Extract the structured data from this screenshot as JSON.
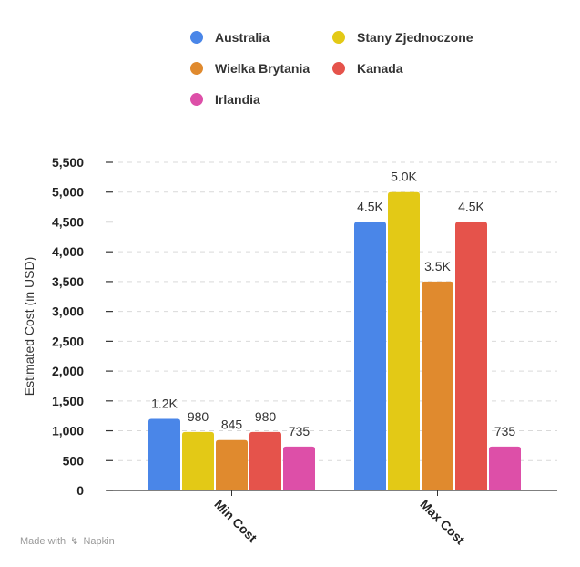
{
  "chart_data": {
    "type": "bar",
    "title": "",
    "xlabel": "",
    "ylabel": "Estimated Cost (in USD)",
    "categories": [
      "Min Cost",
      "Max Cost"
    ],
    "series": [
      {
        "name": "Australia",
        "color": "#4a86e8",
        "values": [
          1200,
          4500
        ],
        "labels": [
          "1.2K",
          "4.5K"
        ]
      },
      {
        "name": "Stany Zjednoczone",
        "color": "#e3c916",
        "values": [
          980,
          5000
        ],
        "labels": [
          "980",
          "5.0K"
        ]
      },
      {
        "name": "Wielka Brytania",
        "color": "#e08a2e",
        "values": [
          845,
          3500
        ],
        "labels": [
          "845",
          "3.5K"
        ]
      },
      {
        "name": "Kanada",
        "color": "#e5534b",
        "values": [
          980,
          4500
        ],
        "labels": [
          "980",
          "4.5K"
        ]
      },
      {
        "name": "Irlandia",
        "color": "#dd4fa8",
        "values": [
          735,
          735
        ],
        "labels": [
          "735",
          "735"
        ]
      }
    ],
    "yticks": [
      0,
      500,
      1000,
      1500,
      2000,
      2500,
      3000,
      3500,
      4000,
      4500,
      5000,
      5500
    ],
    "ytick_labels": [
      "0",
      "500",
      "1,000",
      "1,500",
      "2,000",
      "2,500",
      "3,000",
      "3,500",
      "4,000",
      "4,500",
      "5,000",
      "5,500"
    ],
    "ylim": [
      0,
      5500
    ],
    "grid": true,
    "legend_position": "top"
  },
  "footer": {
    "made_with": "Made with",
    "brand": "Napkin",
    "brand_icon": "napkin-logo-icon"
  }
}
